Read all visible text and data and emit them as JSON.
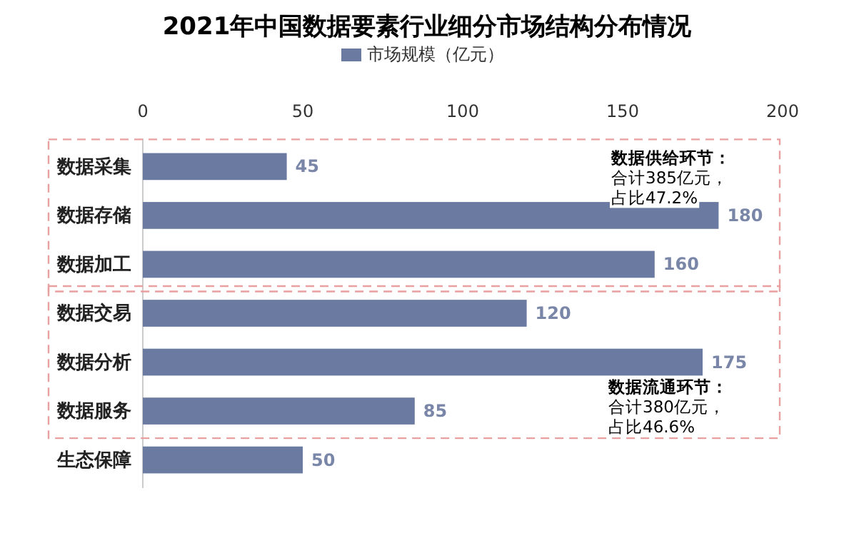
{
  "chart_data": {
    "type": "bar",
    "orientation": "horizontal",
    "title": "2021年中国数据要素行业细分市场结构分布情况",
    "categories": [
      "数据采集",
      "数据存储",
      "数据加工",
      "数据交易",
      "数据分析",
      "数据服务",
      "生态保障"
    ],
    "series": [
      {
        "name": "市场规模（亿元）",
        "color": "#6a7aa0",
        "values": [
          45,
          180,
          160,
          120,
          175,
          85,
          50
        ]
      }
    ],
    "xlim": [
      0,
      200
    ],
    "xticks": [
      0,
      50,
      100,
      150,
      200
    ],
    "data_labels": true,
    "legend": "top",
    "grid": false,
    "annotations": [
      "数据供给环节：",
      "合计385亿元，",
      "占比47.2%",
      "数据流通环节：",
      "合计380亿元，",
      "占比46.6%"
    ]
  }
}
